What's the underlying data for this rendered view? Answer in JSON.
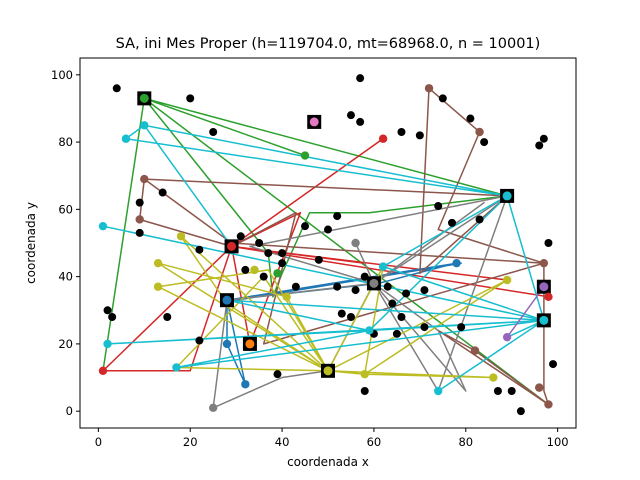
{
  "chart_data": {
    "type": "scatter",
    "title": "SA, ini Mes Proper (h=119704.0, mt=68968.0, n = 10001)",
    "xlabel": "coordenada x",
    "ylabel": "coordenada y",
    "xlim": [
      -4,
      104
    ],
    "ylim": [
      -5,
      105
    ],
    "xticks": [
      0,
      20,
      40,
      60,
      80,
      100
    ],
    "yticks": [
      0,
      20,
      40,
      60,
      80,
      100
    ],
    "grid": false,
    "legend": "none",
    "points": [
      [
        4,
        96
      ],
      [
        20,
        93
      ],
      [
        57,
        99
      ],
      [
        25,
        83
      ],
      [
        55,
        88
      ],
      [
        57,
        86
      ],
      [
        66,
        83
      ],
      [
        70,
        82
      ],
      [
        75,
        93
      ],
      [
        81,
        87
      ],
      [
        84,
        80
      ],
      [
        96,
        79
      ],
      [
        97,
        81
      ],
      [
        14,
        65
      ],
      [
        9,
        62
      ],
      [
        9,
        53
      ],
      [
        22,
        48
      ],
      [
        31,
        52
      ],
      [
        35,
        50
      ],
      [
        45,
        55
      ],
      [
        52,
        58
      ],
      [
        50,
        54
      ],
      [
        37,
        47
      ],
      [
        40,
        47
      ],
      [
        40,
        44
      ],
      [
        48,
        45
      ],
      [
        52,
        37
      ],
      [
        56,
        36
      ],
      [
        58,
        40
      ],
      [
        63,
        37
      ],
      [
        64,
        32
      ],
      [
        67,
        35
      ],
      [
        71,
        36
      ],
      [
        74,
        61
      ],
      [
        77,
        56
      ],
      [
        83,
        57
      ],
      [
        98,
        50
      ],
      [
        3,
        28
      ],
      [
        2,
        30
      ],
      [
        15,
        28
      ],
      [
        22,
        21
      ],
      [
        39,
        11
      ],
      [
        53,
        29
      ],
      [
        55,
        28
      ],
      [
        60,
        23
      ],
      [
        65,
        23
      ],
      [
        66,
        28
      ],
      [
        71,
        25
      ],
      [
        79,
        25
      ],
      [
        82,
        18
      ],
      [
        58,
        6
      ],
      [
        87,
        6
      ],
      [
        90,
        6
      ],
      [
        92,
        0
      ],
      [
        96,
        7
      ],
      [
        99,
        14
      ],
      [
        32,
        42
      ],
      [
        34,
        42
      ],
      [
        36,
        40
      ],
      [
        43,
        37
      ]
    ],
    "depots": [
      {
        "x": 10,
        "y": 93,
        "color": "#2ca02c"
      },
      {
        "x": 47,
        "y": 86,
        "color": "#e377c2"
      },
      {
        "x": 29,
        "y": 49,
        "color": "#d62728"
      },
      {
        "x": 28,
        "y": 33,
        "color": "#1f77b4"
      },
      {
        "x": 33,
        "y": 20,
        "color": "#ff7f0e"
      },
      {
        "x": 50,
        "y": 12,
        "color": "#bcbd22"
      },
      {
        "x": 60,
        "y": 38,
        "color": "#7f7f7f"
      },
      {
        "x": 89,
        "y": 64,
        "color": "#17becf"
      },
      {
        "x": 97,
        "y": 37,
        "color": "#9467bd"
      },
      {
        "x": 97,
        "y": 27,
        "color": "#17becf"
      }
    ],
    "series": [
      {
        "color": "#2ca02c",
        "path": [
          [
            10,
            93
          ],
          [
            1,
            12
          ],
          [
            10,
            93
          ],
          [
            45,
            76
          ],
          [
            10,
            93
          ],
          [
            98,
            2
          ],
          [
            10,
            93
          ],
          [
            89,
            64
          ],
          [
            59,
            59
          ],
          [
            46,
            59
          ],
          [
            40,
            41
          ],
          [
            38,
            34
          ],
          [
            37,
            47
          ],
          [
            10,
            93
          ]
        ]
      },
      {
        "color": "#d62728",
        "path": [
          [
            29,
            49
          ],
          [
            62,
            81
          ],
          [
            29,
            49
          ],
          [
            44,
            59
          ],
          [
            33,
            20
          ],
          [
            29,
            49
          ],
          [
            1,
            12
          ],
          [
            20,
            12
          ],
          [
            29,
            49
          ],
          [
            98,
            34
          ],
          [
            29,
            49
          ],
          [
            89,
            39
          ],
          [
            29,
            49
          ],
          [
            58,
            44
          ],
          [
            29,
            49
          ]
        ]
      },
      {
        "color": "#1f77b4",
        "path": [
          [
            28,
            33
          ],
          [
            32,
            8
          ],
          [
            28,
            20
          ],
          [
            28,
            33
          ],
          [
            78,
            44
          ],
          [
            75,
            43
          ],
          [
            61,
            38
          ],
          [
            28,
            33
          ],
          [
            30,
            33
          ],
          [
            79,
            44
          ],
          [
            28,
            33
          ]
        ]
      },
      {
        "color": "#8c564b",
        "path": [
          [
            10,
            69
          ],
          [
            89,
            64
          ],
          [
            70,
            41
          ],
          [
            72,
            96
          ],
          [
            83,
            83
          ],
          [
            74,
            54
          ],
          [
            97,
            44
          ],
          [
            29,
            50
          ],
          [
            10,
            69
          ],
          [
            9,
            57
          ],
          [
            29,
            49
          ],
          [
            43,
            59
          ],
          [
            36,
            20
          ],
          [
            97,
            44
          ],
          [
            97,
            37
          ],
          [
            97,
            6
          ],
          [
            98,
            2
          ],
          [
            74,
            24
          ],
          [
            82,
            18
          ],
          [
            98,
            2
          ]
        ]
      },
      {
        "color": "#7f7f7f",
        "path": [
          [
            60,
            38
          ],
          [
            89,
            64
          ],
          [
            33,
            49
          ],
          [
            60,
            38
          ],
          [
            28,
            33
          ],
          [
            25,
            1
          ],
          [
            40,
            10
          ],
          [
            50,
            12
          ],
          [
            60,
            38
          ],
          [
            56,
            50
          ],
          [
            60,
            38
          ],
          [
            84,
            62
          ],
          [
            60,
            38
          ],
          [
            74,
            24
          ],
          [
            80,
            6
          ],
          [
            60,
            38
          ],
          [
            89,
            64
          ],
          [
            74,
            6
          ],
          [
            60,
            38
          ]
        ]
      },
      {
        "color": "#bcbd22",
        "path": [
          [
            50,
            12
          ],
          [
            18,
            52
          ],
          [
            28,
            32
          ],
          [
            50,
            12
          ],
          [
            13,
            44
          ],
          [
            41,
            34
          ],
          [
            50,
            12
          ],
          [
            13,
            37
          ],
          [
            37,
            42
          ],
          [
            50,
            12
          ],
          [
            58,
            11
          ],
          [
            86,
            10
          ],
          [
            50,
            12
          ],
          [
            89,
            39
          ],
          [
            58,
            11
          ],
          [
            50,
            12
          ],
          [
            17,
            13
          ],
          [
            36,
            40
          ],
          [
            50,
            12
          ],
          [
            58,
            11
          ],
          [
            62,
            43
          ],
          [
            50,
            12
          ]
        ]
      },
      {
        "color": "#17becf",
        "path": [
          [
            89,
            64
          ],
          [
            6,
            81
          ],
          [
            10,
            85
          ],
          [
            29,
            49
          ],
          [
            10,
            85
          ],
          [
            89,
            64
          ],
          [
            97,
            27
          ],
          [
            59,
            24
          ],
          [
            2,
            20
          ],
          [
            97,
            27
          ],
          [
            1,
            55
          ],
          [
            97,
            27
          ],
          [
            17,
            13
          ],
          [
            59,
            24
          ],
          [
            28,
            33
          ],
          [
            97,
            27
          ],
          [
            74,
            6
          ],
          [
            97,
            27
          ],
          [
            62,
            43
          ],
          [
            89,
            64
          ],
          [
            59,
            24
          ],
          [
            97,
            27
          ],
          [
            89,
            22
          ],
          [
            97,
            27
          ]
        ]
      },
      {
        "color": "#9467bd",
        "path": [
          [
            97,
            37
          ],
          [
            89,
            22
          ],
          [
            97,
            37
          ]
        ]
      },
      {
        "color": "#ff7f0e",
        "path": [
          [
            33,
            20
          ],
          [
            33,
            20
          ]
        ]
      }
    ],
    "extra_colored_points": [
      {
        "x": 45,
        "y": 76,
        "color": "#2ca02c"
      },
      {
        "x": 1,
        "y": 12,
        "color": "#d62728"
      },
      {
        "x": 62,
        "y": 81,
        "color": "#d62728"
      },
      {
        "x": 98,
        "y": 34,
        "color": "#d62728"
      },
      {
        "x": 32,
        "y": 8,
        "color": "#1f77b4"
      },
      {
        "x": 28,
        "y": 20,
        "color": "#1f77b4"
      },
      {
        "x": 78,
        "y": 44,
        "color": "#1f77b4"
      },
      {
        "x": 72,
        "y": 96,
        "color": "#8c564b"
      },
      {
        "x": 83,
        "y": 83,
        "color": "#8c564b"
      },
      {
        "x": 10,
        "y": 69,
        "color": "#8c564b"
      },
      {
        "x": 9,
        "y": 57,
        "color": "#8c564b"
      },
      {
        "x": 97,
        "y": 44,
        "color": "#8c564b"
      },
      {
        "x": 98,
        "y": 2,
        "color": "#8c564b"
      },
      {
        "x": 82,
        "y": 18,
        "color": "#8c564b"
      },
      {
        "x": 96,
        "y": 7,
        "color": "#8c564b"
      },
      {
        "x": 25,
        "y": 1,
        "color": "#7f7f7f"
      },
      {
        "x": 56,
        "y": 50,
        "color": "#7f7f7f"
      },
      {
        "x": 13,
        "y": 44,
        "color": "#bcbd22"
      },
      {
        "x": 13,
        "y": 37,
        "color": "#bcbd22"
      },
      {
        "x": 18,
        "y": 52,
        "color": "#bcbd22"
      },
      {
        "x": 34,
        "y": 42,
        "color": "#bcbd22"
      },
      {
        "x": 41,
        "y": 34,
        "color": "#bcbd22"
      },
      {
        "x": 58,
        "y": 11,
        "color": "#bcbd22"
      },
      {
        "x": 86,
        "y": 10,
        "color": "#bcbd22"
      },
      {
        "x": 89,
        "y": 39,
        "color": "#bcbd22"
      },
      {
        "x": 6,
        "y": 81,
        "color": "#17becf"
      },
      {
        "x": 10,
        "y": 85,
        "color": "#17becf"
      },
      {
        "x": 1,
        "y": 55,
        "color": "#17becf"
      },
      {
        "x": 2,
        "y": 20,
        "color": "#17becf"
      },
      {
        "x": 17,
        "y": 13,
        "color": "#17becf"
      },
      {
        "x": 59,
        "y": 24,
        "color": "#17becf"
      },
      {
        "x": 74,
        "y": 6,
        "color": "#17becf"
      },
      {
        "x": 62,
        "y": 43,
        "color": "#17becf"
      },
      {
        "x": 89,
        "y": 22,
        "color": "#9467bd"
      },
      {
        "x": 39,
        "y": 41,
        "color": "#2ca02c"
      }
    ]
  }
}
